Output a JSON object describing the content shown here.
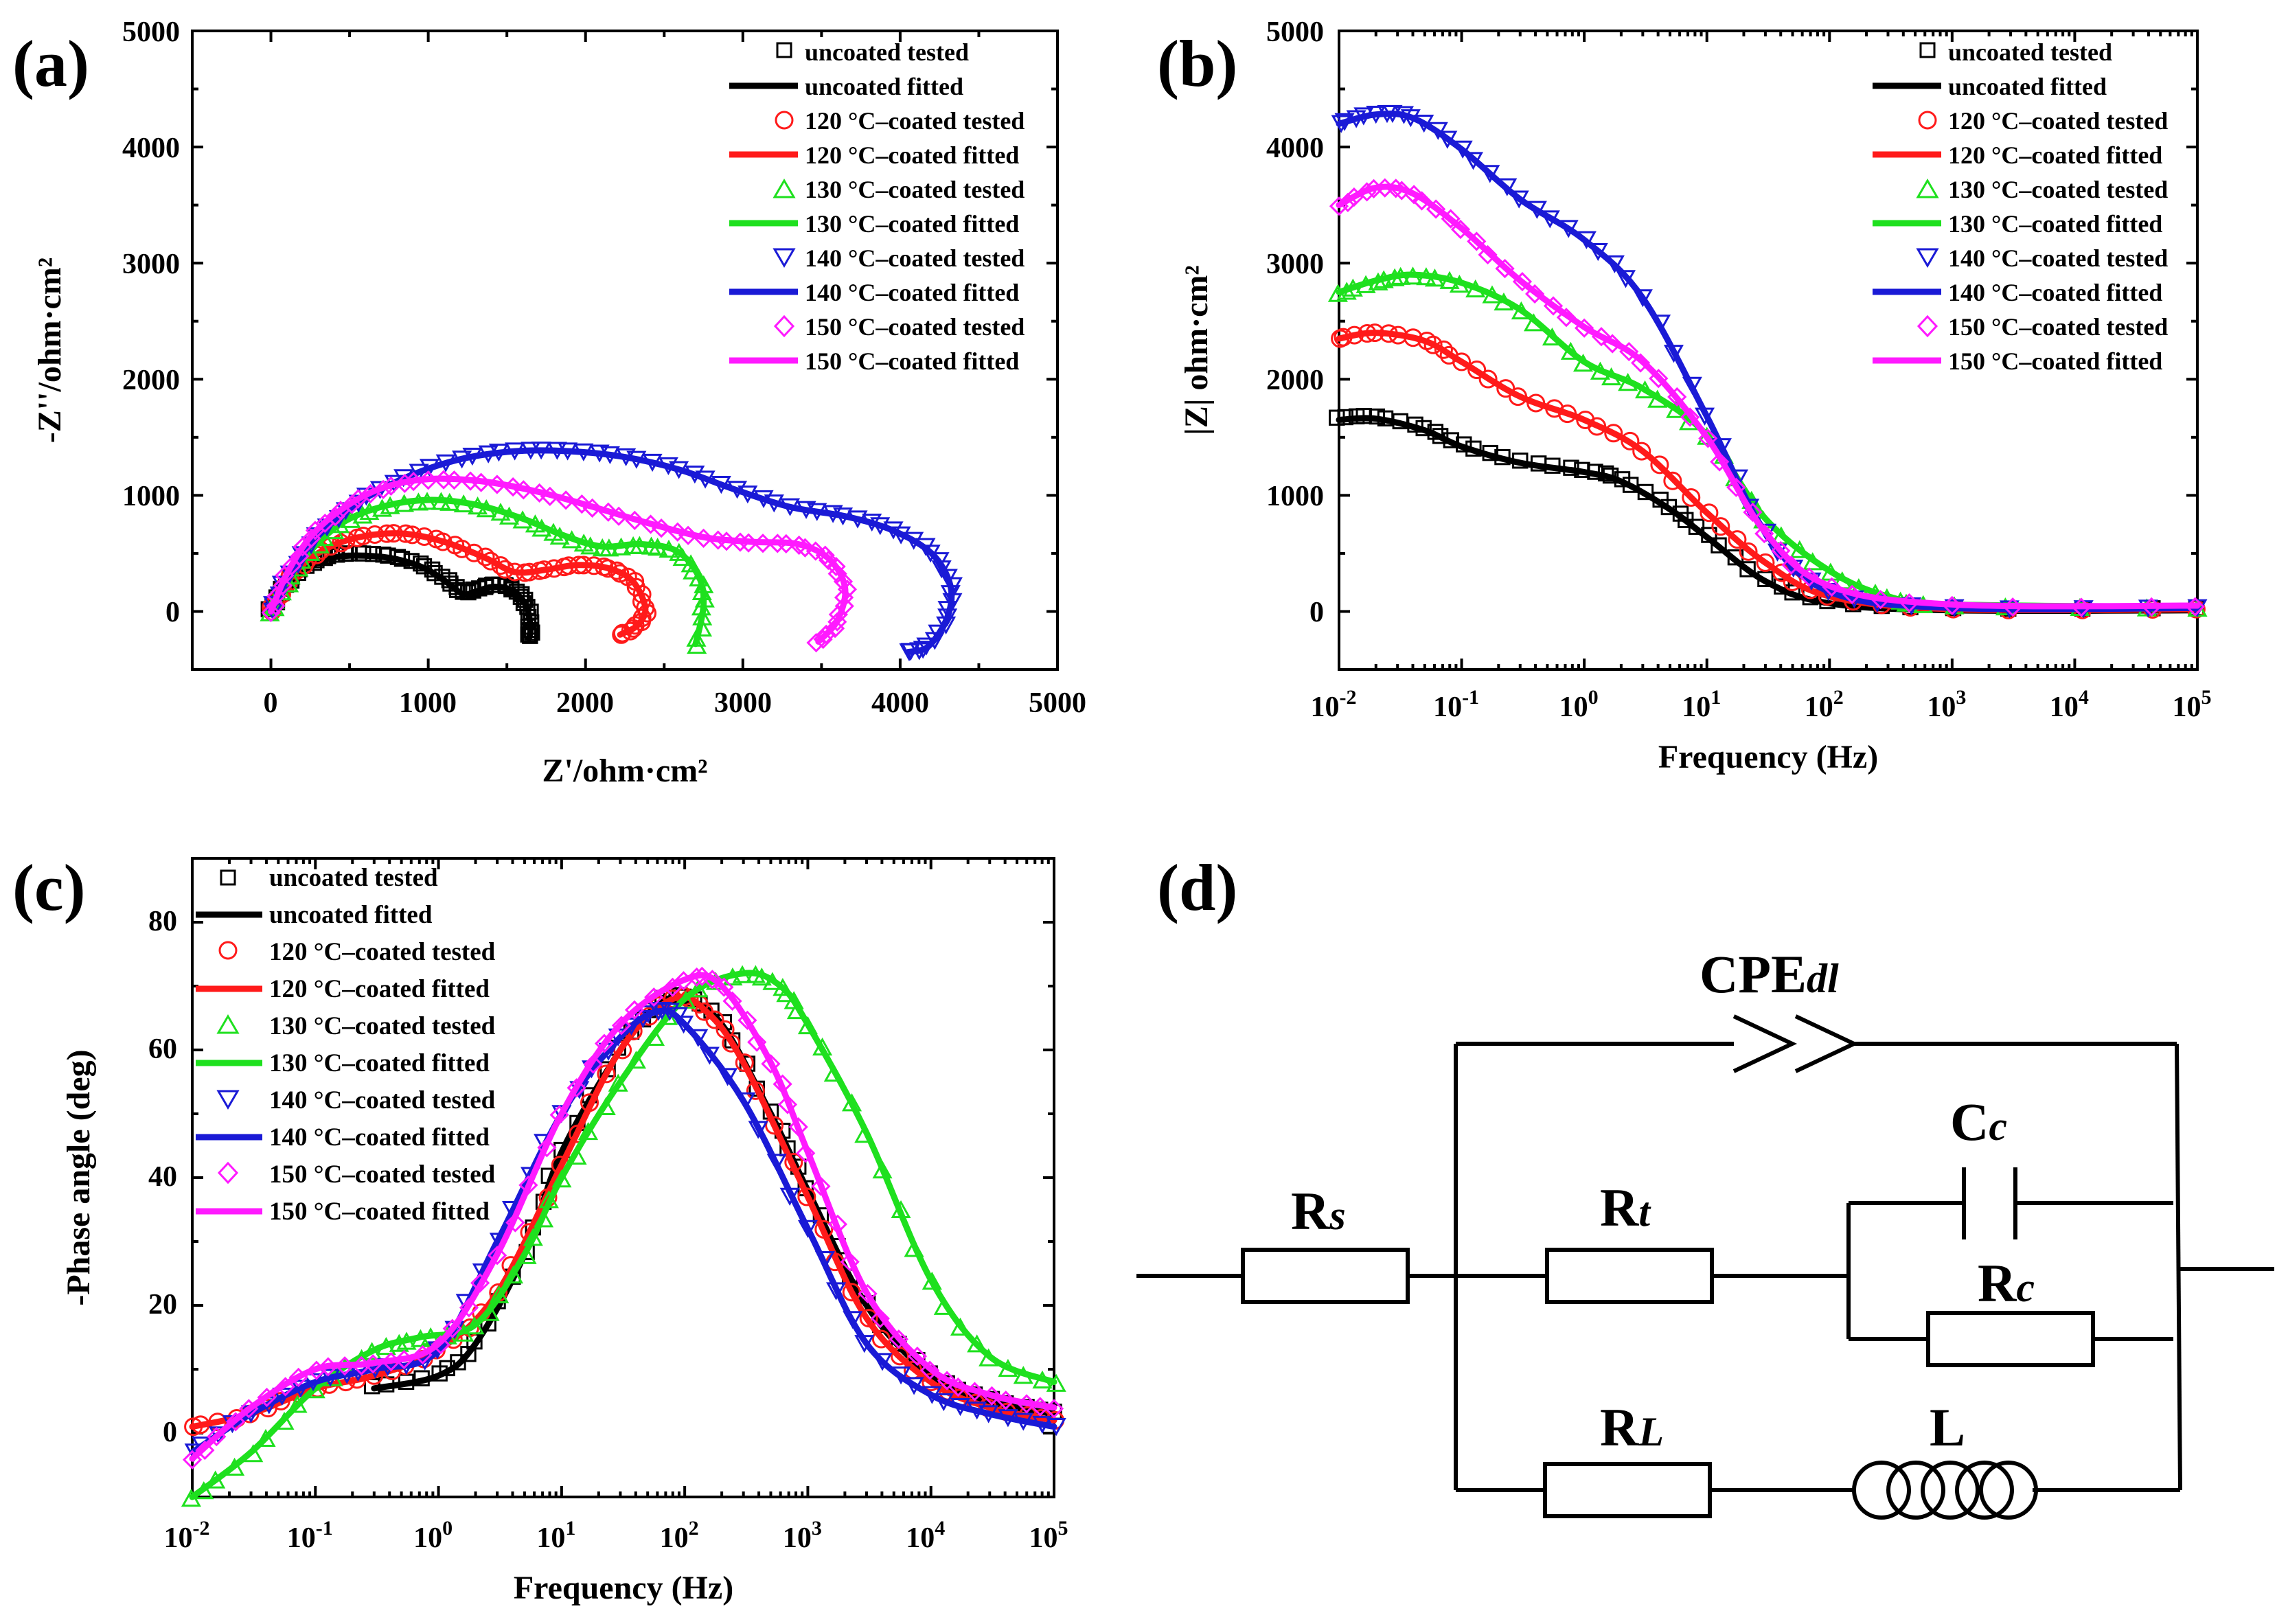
{
  "colors": {
    "uncoated": "#000000",
    "c120": "#ff1a1a",
    "c130": "#1ee01e",
    "c140": "#1a1ad6",
    "c150": "#ff1aff"
  },
  "series_names": [
    [
      "uncoated tested",
      "uncoated fitted"
    ],
    [
      "120 °C–coated tested",
      "120 °C–coated fitted"
    ],
    [
      "130 °C–coated tested",
      "130 °C–coated fitted"
    ],
    [
      "140 °C–coated tested",
      "140 °C–coated fitted"
    ],
    [
      "150 °C–coated tested",
      "150 °C–coated fitted"
    ]
  ],
  "chart_data": [
    {
      "type": "scatter",
      "panel_label": "(a)",
      "title": "",
      "xlabel": "Z'/ohm·cm²",
      "ylabel": "-Z''/ohm·cm²",
      "xlim": [
        -500,
        5000
      ],
      "ylim": [
        -500,
        5000
      ],
      "xticks": [
        "0",
        "1000",
        "2000",
        "3000",
        "4000",
        "5000"
      ],
      "yticks": [
        "0",
        "1000",
        "2000",
        "3000",
        "4000",
        "5000"
      ],
      "legend": "top-right",
      "series": [
        {
          "name": "uncoated",
          "markers": "square",
          "points": [
            [
              0,
              0
            ],
            [
              60,
              140
            ],
            [
              140,
              280
            ],
            [
              260,
              400
            ],
            [
              420,
              470
            ],
            [
              600,
              480
            ],
            [
              800,
              450
            ],
            [
              980,
              370
            ],
            [
              1120,
              250
            ],
            [
              1220,
              150
            ],
            [
              1300,
              170
            ],
            [
              1400,
              210
            ],
            [
              1500,
              200
            ],
            [
              1580,
              130
            ],
            [
              1630,
              20
            ],
            [
              1650,
              -150
            ],
            [
              1640,
              -230
            ]
          ]
        },
        {
          "name": "120 °C",
          "markers": "circle",
          "points": [
            [
              0,
              0
            ],
            [
              80,
              200
            ],
            [
              200,
              400
            ],
            [
              380,
              560
            ],
            [
              600,
              650
            ],
            [
              850,
              670
            ],
            [
              1100,
              600
            ],
            [
              1350,
              470
            ],
            [
              1550,
              340
            ],
            [
              1750,
              360
            ],
            [
              1950,
              400
            ],
            [
              2150,
              370
            ],
            [
              2300,
              260
            ],
            [
              2380,
              30
            ],
            [
              2330,
              -120
            ],
            [
              2220,
              -200
            ]
          ]
        },
        {
          "name": "130 °C",
          "markers": "triangle-up",
          "points": [
            [
              0,
              0
            ],
            [
              100,
              250
            ],
            [
              250,
              520
            ],
            [
              450,
              760
            ],
            [
              700,
              900
            ],
            [
              1000,
              960
            ],
            [
              1300,
              920
            ],
            [
              1600,
              800
            ],
            [
              1850,
              660
            ],
            [
              2100,
              560
            ],
            [
              2350,
              580
            ],
            [
              2580,
              520
            ],
            [
              2720,
              300
            ],
            [
              2750,
              50
            ],
            [
              2700,
              -280
            ]
          ]
        },
        {
          "name": "140 °C",
          "markers": "triangle-down",
          "points": [
            [
              0,
              0
            ],
            [
              120,
              320
            ],
            [
              300,
              650
            ],
            [
              550,
              930
            ],
            [
              850,
              1150
            ],
            [
              1200,
              1310
            ],
            [
              1550,
              1380
            ],
            [
              1900,
              1380
            ],
            [
              2250,
              1330
            ],
            [
              2600,
              1220
            ],
            [
              2950,
              1050
            ],
            [
              3300,
              900
            ],
            [
              3650,
              820
            ],
            [
              3950,
              700
            ],
            [
              4200,
              500
            ],
            [
              4320,
              220
            ],
            [
              4300,
              -50
            ],
            [
              4180,
              -300
            ],
            [
              4050,
              -350
            ]
          ]
        },
        {
          "name": "150 °C",
          "markers": "diamond",
          "points": [
            [
              0,
              0
            ],
            [
              100,
              320
            ],
            [
              250,
              640
            ],
            [
              450,
              880
            ],
            [
              700,
              1060
            ],
            [
              1000,
              1140
            ],
            [
              1350,
              1120
            ],
            [
              1700,
              1030
            ],
            [
              2050,
              900
            ],
            [
              2400,
              760
            ],
            [
              2750,
              640
            ],
            [
              3050,
              600
            ],
            [
              3350,
              580
            ],
            [
              3550,
              450
            ],
            [
              3650,
              200
            ],
            [
              3600,
              -80
            ],
            [
              3480,
              -260
            ]
          ]
        }
      ]
    },
    {
      "type": "scatter",
      "panel_label": "(b)",
      "title": "",
      "xlabel": "Frequency (Hz)",
      "ylabel": "|Z| ohm·cm²",
      "xscale": "log",
      "xlim": [
        0.01,
        100000
      ],
      "ylim": [
        -500,
        5000
      ],
      "xticks": [
        "10-2",
        "10-1",
        "100",
        "101",
        "102",
        "103",
        "104",
        "105"
      ],
      "yticks": [
        "0",
        "1000",
        "2000",
        "3000",
        "4000",
        "5000"
      ],
      "legend": "top-right",
      "series": [
        {
          "name": "uncoated",
          "markers": "square",
          "points": [
            [
              0.01,
              1650
            ],
            [
              0.02,
              1660
            ],
            [
              0.05,
              1560
            ],
            [
              0.1,
              1420
            ],
            [
              0.3,
              1280
            ],
            [
              1,
              1200
            ],
            [
              2,
              1120
            ],
            [
              5,
              880
            ],
            [
              10,
              640
            ],
            [
              30,
              260
            ],
            [
              100,
              70
            ],
            [
              1000,
              10
            ],
            [
              100000,
              10
            ]
          ]
        },
        {
          "name": "120 °C",
          "markers": "circle",
          "points": [
            [
              0.01,
              2350
            ],
            [
              0.02,
              2400
            ],
            [
              0.05,
              2330
            ],
            [
              0.1,
              2150
            ],
            [
              0.3,
              1850
            ],
            [
              1,
              1650
            ],
            [
              3,
              1380
            ],
            [
              10,
              850
            ],
            [
              30,
              420
            ],
            [
              100,
              130
            ],
            [
              1000,
              20
            ],
            [
              100000,
              20
            ]
          ]
        },
        {
          "name": "130 °C",
          "markers": "triangle-up",
          "points": [
            [
              0.01,
              2750
            ],
            [
              0.02,
              2850
            ],
            [
              0.04,
              2900
            ],
            [
              0.1,
              2830
            ],
            [
              0.3,
              2600
            ],
            [
              1,
              2150
            ],
            [
              3,
              1920
            ],
            [
              10,
              1520
            ],
            [
              30,
              800
            ],
            [
              100,
              350
            ],
            [
              300,
              130
            ],
            [
              1000,
              60
            ],
            [
              100000,
              40
            ]
          ]
        },
        {
          "name": "140 °C",
          "markers": "triangle-down",
          "points": [
            [
              0.01,
              4200
            ],
            [
              0.02,
              4280
            ],
            [
              0.04,
              4250
            ],
            [
              0.1,
              3980
            ],
            [
              0.3,
              3550
            ],
            [
              1,
              3200
            ],
            [
              3,
              2700
            ],
            [
              10,
              1680
            ],
            [
              30,
              680
            ],
            [
              100,
              170
            ],
            [
              1000,
              30
            ],
            [
              100000,
              30
            ]
          ]
        },
        {
          "name": "150 °C",
          "markers": "diamond",
          "points": [
            [
              0.01,
              3500
            ],
            [
              0.02,
              3650
            ],
            [
              0.04,
              3600
            ],
            [
              0.1,
              3300
            ],
            [
              0.3,
              2850
            ],
            [
              1,
              2450
            ],
            [
              3,
              2150
            ],
            [
              10,
              1500
            ],
            [
              30,
              680
            ],
            [
              100,
              220
            ],
            [
              1000,
              60
            ],
            [
              100000,
              50
            ]
          ]
        }
      ]
    },
    {
      "type": "scatter",
      "panel_label": "(c)",
      "title": "",
      "xlabel": "Frequency (Hz)",
      "ylabel": "-Phase angle (deg)",
      "xscale": "log",
      "xlim": [
        0.01,
        100000
      ],
      "ylim": [
        -10,
        90
      ],
      "xticks": [
        "10-2",
        "10-1",
        "100",
        "101",
        "102",
        "103",
        "104",
        "105"
      ],
      "yticks": [
        "0",
        "20",
        "40",
        "60",
        "80"
      ],
      "legend": "top-left",
      "series": [
        {
          "name": "uncoated",
          "markers": "square",
          "points": [
            [
              0.3,
              7
            ],
            [
              1,
              9
            ],
            [
              2,
              14
            ],
            [
              5,
              28
            ],
            [
              10,
              44
            ],
            [
              30,
              60
            ],
            [
              60,
              67
            ],
            [
              100,
              68
            ],
            [
              200,
              64
            ],
            [
              500,
              50
            ],
            [
              1000,
              38
            ],
            [
              3000,
              20
            ],
            [
              10000,
              9
            ],
            [
              30000,
              5
            ],
            [
              100000,
              3
            ]
          ]
        },
        {
          "name": "120 °C",
          "markers": "circle",
          "points": [
            [
              0.01,
              1
            ],
            [
              0.03,
              3
            ],
            [
              0.1,
              7
            ],
            [
              0.3,
              9
            ],
            [
              1,
              13
            ],
            [
              3,
              22
            ],
            [
              10,
              42
            ],
            [
              30,
              60
            ],
            [
              80,
              68
            ],
            [
              150,
              66
            ],
            [
              300,
              58
            ],
            [
              1000,
              37
            ],
            [
              3000,
              18
            ],
            [
              10000,
              8
            ],
            [
              30000,
              4
            ],
            [
              100000,
              2
            ]
          ]
        },
        {
          "name": "130 °C",
          "markers": "triangle-up",
          "points": [
            [
              0.01,
              -10
            ],
            [
              0.03,
              -3
            ],
            [
              0.1,
              7
            ],
            [
              0.3,
              13
            ],
            [
              0.7,
              15
            ],
            [
              2,
              17
            ],
            [
              5,
              28
            ],
            [
              10,
              40
            ],
            [
              30,
              55
            ],
            [
              100,
              68
            ],
            [
              300,
              72
            ],
            [
              600,
              70
            ],
            [
              1000,
              64
            ],
            [
              3000,
              47
            ],
            [
              10000,
              24
            ],
            [
              30000,
              12
            ],
            [
              100000,
              8
            ]
          ]
        },
        {
          "name": "140 °C",
          "markers": "triangle-down",
          "points": [
            [
              0.01,
              -3
            ],
            [
              0.03,
              3
            ],
            [
              0.1,
              8
            ],
            [
              0.3,
              10
            ],
            [
              1,
              13
            ],
            [
              3,
              30
            ],
            [
              10,
              50
            ],
            [
              30,
              62
            ],
            [
              60,
              66
            ],
            [
              100,
              64
            ],
            [
              300,
              52
            ],
            [
              1000,
              32
            ],
            [
              3000,
              14
            ],
            [
              10000,
              6
            ],
            [
              30000,
              3
            ],
            [
              100000,
              1
            ]
          ]
        },
        {
          "name": "150 °C",
          "markers": "diamond",
          "points": [
            [
              0.01,
              -4
            ],
            [
              0.03,
              4
            ],
            [
              0.1,
              10
            ],
            [
              0.3,
              11
            ],
            [
              1,
              14
            ],
            [
              3,
              28
            ],
            [
              10,
              50
            ],
            [
              30,
              64
            ],
            [
              100,
              71
            ],
            [
              200,
              70
            ],
            [
              500,
              58
            ],
            [
              1000,
              44
            ],
            [
              3000,
              22
            ],
            [
              10000,
              10
            ],
            [
              30000,
              6
            ],
            [
              100000,
              4
            ]
          ]
        }
      ]
    }
  ],
  "circuit": {
    "panel_label": "(d)",
    "labels": {
      "cpe": "CPE",
      "cpe_sub": "dl",
      "rs": "R",
      "rs_sub": "s",
      "rt": "R",
      "rt_sub": "t",
      "cc": "C",
      "cc_sub": "c",
      "rc": "R",
      "rc_sub": "c",
      "rl": "R",
      "rl_sub": "L",
      "l": "L"
    }
  }
}
